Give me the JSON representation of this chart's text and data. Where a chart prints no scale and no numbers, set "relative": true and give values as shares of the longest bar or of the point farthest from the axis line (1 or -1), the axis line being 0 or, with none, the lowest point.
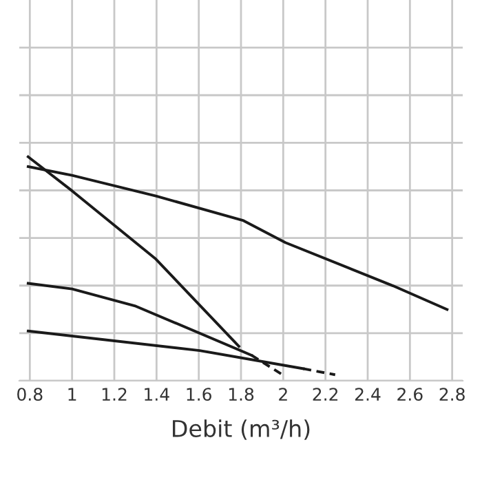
{
  "chart_data": {
    "type": "line",
    "xlabel": "Debit (m³/h)",
    "relative": true,
    "grid": true,
    "legend": false,
    "marker": "none",
    "xlim": [
      0.75,
      2.85
    ],
    "xticks": [
      0.8,
      1,
      1.2,
      1.4,
      1.6,
      1.8,
      2,
      2.2,
      2.4,
      2.6,
      2.8
    ],
    "series": [
      {
        "color": "#1a1a1a",
        "line_style": "solid",
        "x": [
          0.792,
          1.0,
          1.397,
          1.812,
          2.01,
          2.52,
          2.776
        ],
        "values": [
          0.956,
          0.917,
          0.825,
          0.715,
          0.617,
          0.424,
          0.318
        ]
      },
      {
        "color": "#1a1a1a",
        "line_style": "solid",
        "x": [
          0.792,
          1.0,
          1.397,
          1.79
        ],
        "values": [
          1.0,
          0.848,
          0.543,
          0.154
        ]
      },
      {
        "color": "#1a1a1a",
        "line_style": "solid",
        "x": [
          0.792,
          1.0,
          1.302,
          1.85
        ],
        "values": [
          0.435,
          0.41,
          0.333,
          0.114
        ]
      },
      {
        "color": "#1a1a1a",
        "line_style": "dashed",
        "x": [
          1.85,
          2.0
        ],
        "values": [
          0.114,
          0.025
        ]
      },
      {
        "color": "#1a1a1a",
        "line_style": "solid",
        "x": [
          0.792,
          1.604,
          2.095
        ],
        "values": [
          0.222,
          0.135,
          0.054
        ]
      },
      {
        "color": "#1a1a1a",
        "line_style": "dashed",
        "x": [
          2.095,
          2.246
        ],
        "values": [
          0.054,
          0.027
        ]
      }
    ]
  }
}
